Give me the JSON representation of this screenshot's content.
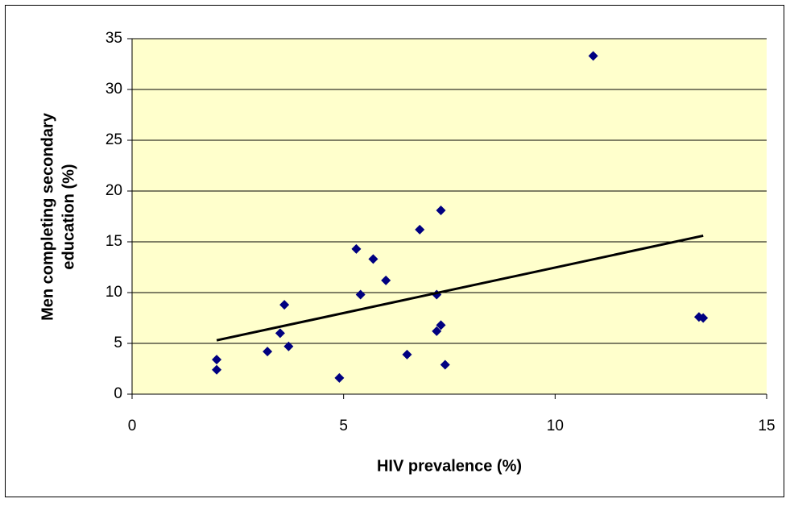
{
  "chart_data": {
    "type": "scatter",
    "xlabel": "HIV prevalence (%)",
    "ylabel": [
      "Men completing secondary",
      "education (%)"
    ],
    "x": [
      2.0,
      2.0,
      3.2,
      3.5,
      3.6,
      3.7,
      4.9,
      5.3,
      5.4,
      5.7,
      6.0,
      6.5,
      6.8,
      7.2,
      7.2,
      7.3,
      7.3,
      7.4,
      10.9,
      13.4,
      13.5
    ],
    "series": [
      {
        "color": "#000080",
        "values": [
          3.4,
          2.4,
          4.2,
          6.0,
          8.8,
          4.7,
          1.6,
          14.3,
          9.8,
          13.3,
          11.2,
          3.9,
          16.2,
          9.8,
          6.2,
          6.8,
          18.1,
          2.9,
          33.3,
          7.6,
          7.5
        ]
      }
    ],
    "trendline": {
      "x": [
        2.0,
        13.5
      ],
      "y": [
        5.3,
        15.6
      ],
      "color": "#000000"
    },
    "xlim": [
      0,
      15
    ],
    "xticks": [
      0,
      5,
      10,
      15
    ],
    "ylim": [
      0,
      35
    ],
    "yticks": [
      0,
      5,
      10,
      15,
      20,
      25,
      30,
      35
    ],
    "grid": true,
    "plot_background": "#ffffcc"
  }
}
